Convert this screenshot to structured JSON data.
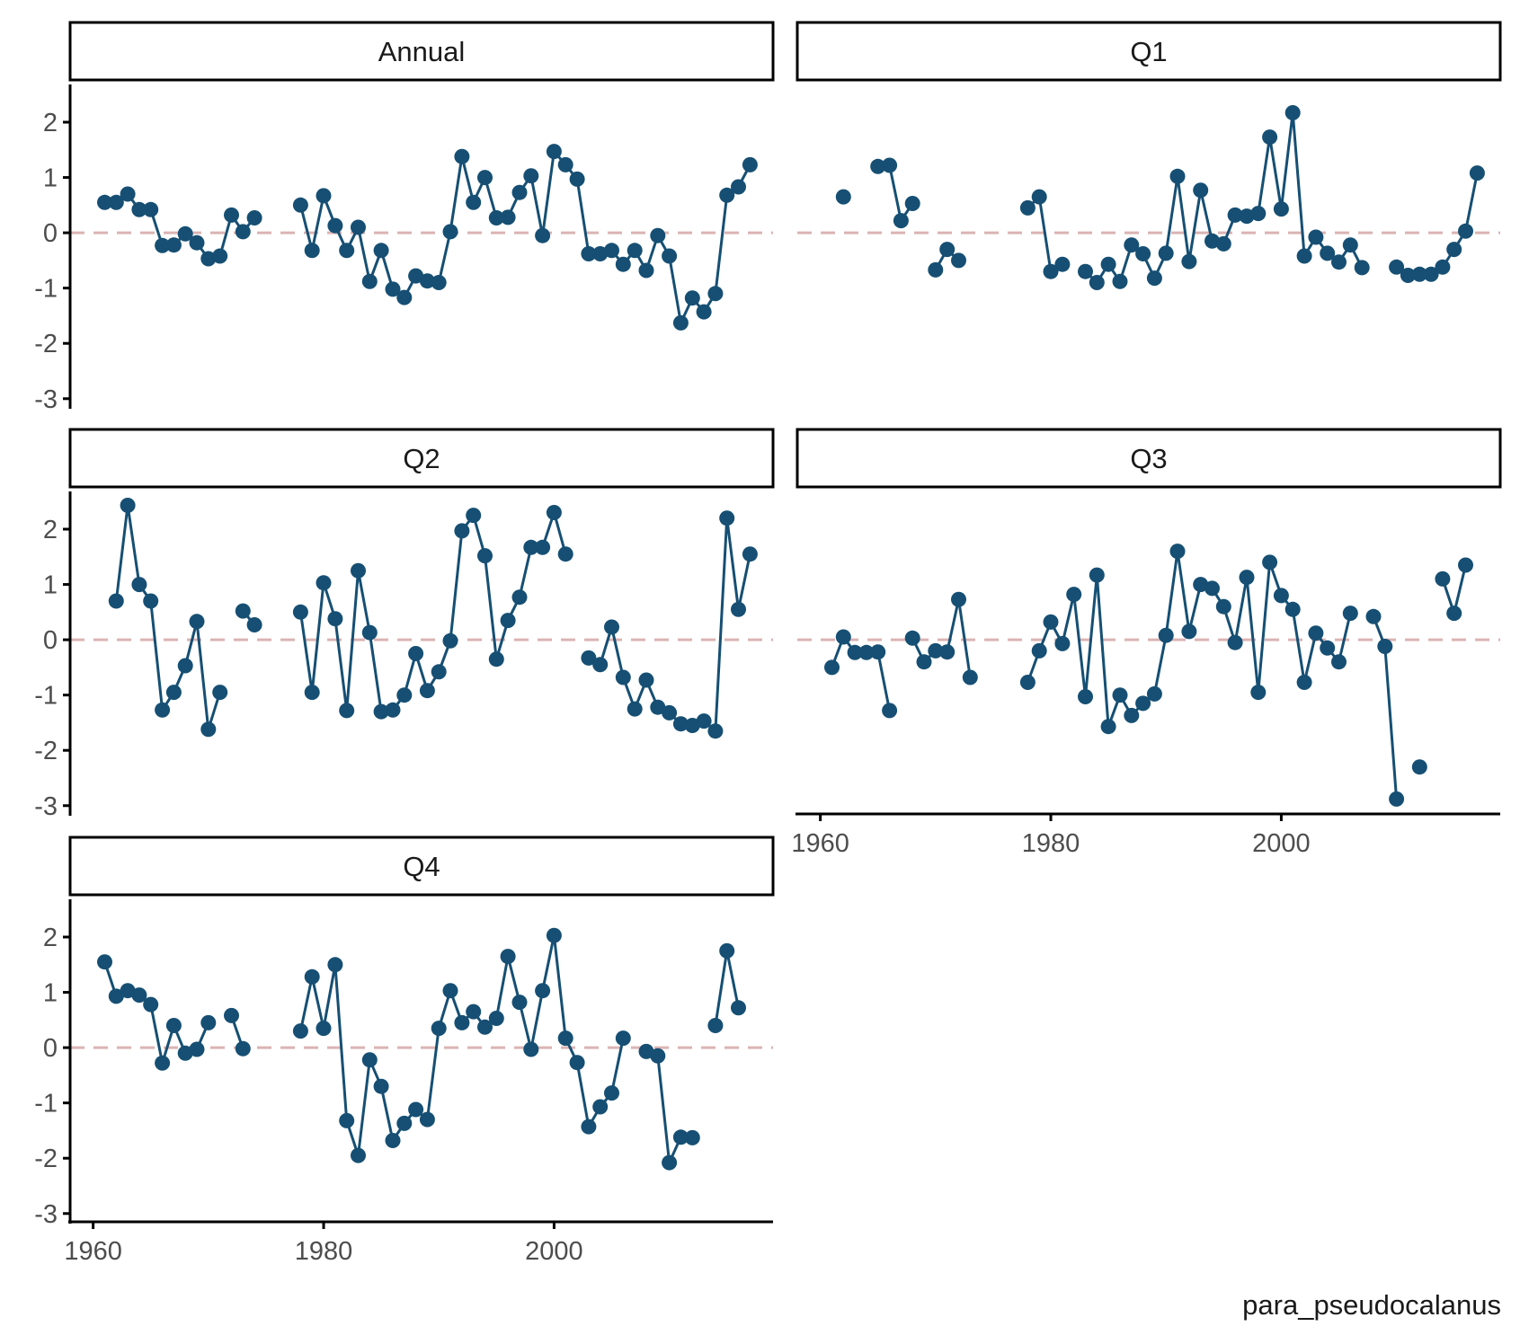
{
  "chart_data": {
    "type": "line",
    "layout": "faceted 2-column grid",
    "caption": "para_pseudocalanus",
    "x_ticks": [
      1960,
      1980,
      2000
    ],
    "xlim": [
      1958,
      2019
    ],
    "y_ticks": [
      -3,
      -2,
      -1,
      0,
      1,
      2
    ],
    "ylim": [
      -3.15,
      2.65
    ],
    "reference_line": {
      "y": 0,
      "style": "dashed",
      "color": "#dbb4b4"
    },
    "colors": {
      "series": "#164f73",
      "strip_border": "#000000",
      "axis": "#000000"
    },
    "years": [
      1961,
      1962,
      1963,
      1964,
      1965,
      1966,
      1967,
      1968,
      1969,
      1970,
      1971,
      1972,
      1973,
      1974,
      1975,
      1976,
      1977,
      1978,
      1979,
      1980,
      1981,
      1982,
      1983,
      1984,
      1985,
      1986,
      1987,
      1988,
      1989,
      1990,
      1991,
      1992,
      1993,
      1994,
      1995,
      1996,
      1997,
      1998,
      1999,
      2000,
      2001,
      2002,
      2003,
      2004,
      2005,
      2006,
      2007,
      2008,
      2009,
      2010,
      2011,
      2012,
      2013,
      2014,
      2015,
      2016,
      2017
    ],
    "panels": [
      {
        "name": "Annual",
        "values": [
          0.55,
          0.55,
          0.7,
          0.42,
          0.42,
          -0.23,
          -0.22,
          -0.02,
          -0.18,
          -0.47,
          -0.42,
          0.32,
          0.02,
          0.27,
          null,
          null,
          null,
          0.5,
          -0.32,
          0.67,
          0.13,
          -0.32,
          0.1,
          -0.88,
          -0.32,
          -1.02,
          -1.17,
          -0.78,
          -0.87,
          -0.9,
          0.02,
          1.38,
          0.55,
          1.0,
          0.27,
          0.28,
          0.73,
          1.03,
          -0.05,
          1.47,
          1.23,
          0.97,
          -0.38,
          -0.38,
          -0.32,
          -0.57,
          -0.32,
          -0.68,
          -0.05,
          -0.42,
          -1.63,
          -1.18,
          -1.43,
          -1.1,
          0.68,
          0.83,
          1.23
        ]
      },
      {
        "name": "Q1",
        "values": [
          null,
          0.65,
          null,
          null,
          1.2,
          1.22,
          0.22,
          0.53,
          null,
          -0.67,
          -0.3,
          -0.5,
          null,
          null,
          null,
          null,
          null,
          0.45,
          0.65,
          -0.7,
          -0.57,
          null,
          -0.7,
          -0.9,
          -0.57,
          -0.88,
          -0.22,
          -0.38,
          -0.82,
          -0.37,
          1.02,
          -0.52,
          0.77,
          -0.15,
          -0.2,
          0.32,
          0.3,
          0.35,
          1.73,
          0.43,
          2.17,
          -0.42,
          -0.08,
          -0.37,
          -0.53,
          -0.22,
          -0.63,
          null,
          null,
          -0.62,
          -0.77,
          -0.75,
          -0.75,
          -0.62,
          -0.3,
          0.03,
          1.08
        ]
      },
      {
        "name": "Q2",
        "values": [
          null,
          0.7,
          2.43,
          1.0,
          0.7,
          -1.27,
          -0.95,
          -0.47,
          0.33,
          -1.62,
          -0.95,
          null,
          0.52,
          0.27,
          null,
          null,
          null,
          0.5,
          -0.95,
          1.03,
          0.38,
          -1.28,
          1.25,
          0.13,
          -1.3,
          -1.27,
          -1.0,
          -0.25,
          -0.92,
          -0.58,
          -0.02,
          1.97,
          2.25,
          1.52,
          -0.35,
          0.35,
          0.77,
          1.67,
          1.67,
          2.3,
          1.55,
          null,
          -0.33,
          -0.45,
          0.23,
          -0.68,
          -1.25,
          -0.73,
          -1.22,
          -1.32,
          -1.52,
          -1.55,
          -1.47,
          -1.65,
          2.2,
          0.55,
          1.55
        ]
      },
      {
        "name": "Q3",
        "values": [
          -0.5,
          0.05,
          -0.23,
          -0.23,
          -0.22,
          -1.28,
          null,
          0.03,
          -0.4,
          -0.2,
          -0.22,
          0.73,
          -0.68,
          null,
          null,
          null,
          null,
          -0.77,
          -0.2,
          0.32,
          -0.07,
          0.82,
          -1.03,
          1.17,
          -1.57,
          -1.0,
          -1.37,
          -1.15,
          -0.98,
          0.08,
          1.6,
          0.15,
          1.0,
          0.93,
          0.6,
          -0.05,
          1.13,
          -0.95,
          1.4,
          0.8,
          0.55,
          -0.77,
          0.12,
          -0.15,
          -0.4,
          0.48,
          null,
          0.42,
          -0.12,
          -2.88,
          null,
          -2.3,
          null,
          1.1,
          0.48,
          1.35,
          null
        ]
      },
      {
        "name": "Q4",
        "values": [
          1.55,
          0.93,
          1.03,
          0.95,
          0.78,
          -0.28,
          0.4,
          -0.1,
          -0.03,
          0.45,
          null,
          0.58,
          -0.02,
          null,
          null,
          null,
          null,
          0.3,
          1.28,
          0.35,
          1.5,
          -1.32,
          -1.95,
          -0.22,
          -0.7,
          -1.68,
          -1.37,
          -1.12,
          -1.3,
          0.35,
          1.03,
          0.45,
          0.65,
          0.37,
          0.53,
          1.65,
          0.82,
          -0.03,
          1.03,
          2.03,
          0.17,
          -0.27,
          -1.43,
          -1.07,
          -0.82,
          0.17,
          null,
          -0.07,
          -0.15,
          -2.08,
          -1.62,
          -1.63,
          null,
          0.4,
          1.75,
          0.72,
          null
        ]
      }
    ]
  }
}
